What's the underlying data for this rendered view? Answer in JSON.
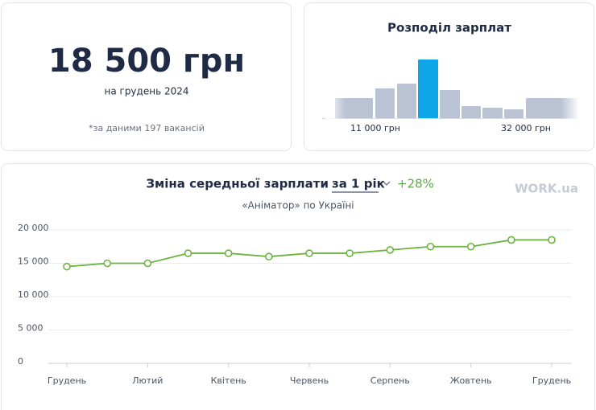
{
  "summary": {
    "amount": "18 500 грн",
    "period": "на грудень 2024",
    "note": "*за даними 197 вакансій"
  },
  "logo": "WORK.ua",
  "chart_data": [
    {
      "type": "bar",
      "title": "Розподіл зарплат",
      "categories": [
        null,
        "11 000 грн",
        null,
        null,
        null,
        null,
        null,
        null,
        "32 000 грн"
      ],
      "values": [
        25,
        37,
        43,
        73,
        35,
        15,
        13,
        11,
        25
      ],
      "colors": [
        "#b9c3d3",
        "#b9c3d3",
        "#b9c3d3",
        "#0ea5e9",
        "#b9c3d3",
        "#b9c3d3",
        "#b9c3d3",
        "#b9c3d3",
        "#b9c3d3"
      ],
      "ylim": [
        0,
        80
      ]
    },
    {
      "type": "line",
      "title": "Зміна середньої зарплати",
      "period": "за 1 рік",
      "change": "+28%",
      "subtitle": "«Аніматор» по Україні",
      "categories": [
        "Грудень",
        null,
        "Лютий",
        null,
        "Квітень",
        null,
        "Червень",
        null,
        "Серпень",
        null,
        "Жовтень",
        null,
        "Грудень"
      ],
      "series": [
        {
          "name": null,
          "color": "#6cb33f",
          "values": [
            14500,
            15000,
            15000,
            16500,
            16500,
            16000,
            16500,
            16500,
            17000,
            17500,
            17500,
            18500,
            18500
          ]
        }
      ],
      "ylim": [
        0,
        20000
      ],
      "yticks": [
        0,
        {
          "value": 5000,
          "label": "5 000"
        },
        {
          "value": 10000,
          "label": "10 000"
        },
        {
          "value": 15000,
          "label": "15 000"
        },
        {
          "value": 20000,
          "label": "20 000"
        }
      ],
      "grid": true
    }
  ]
}
